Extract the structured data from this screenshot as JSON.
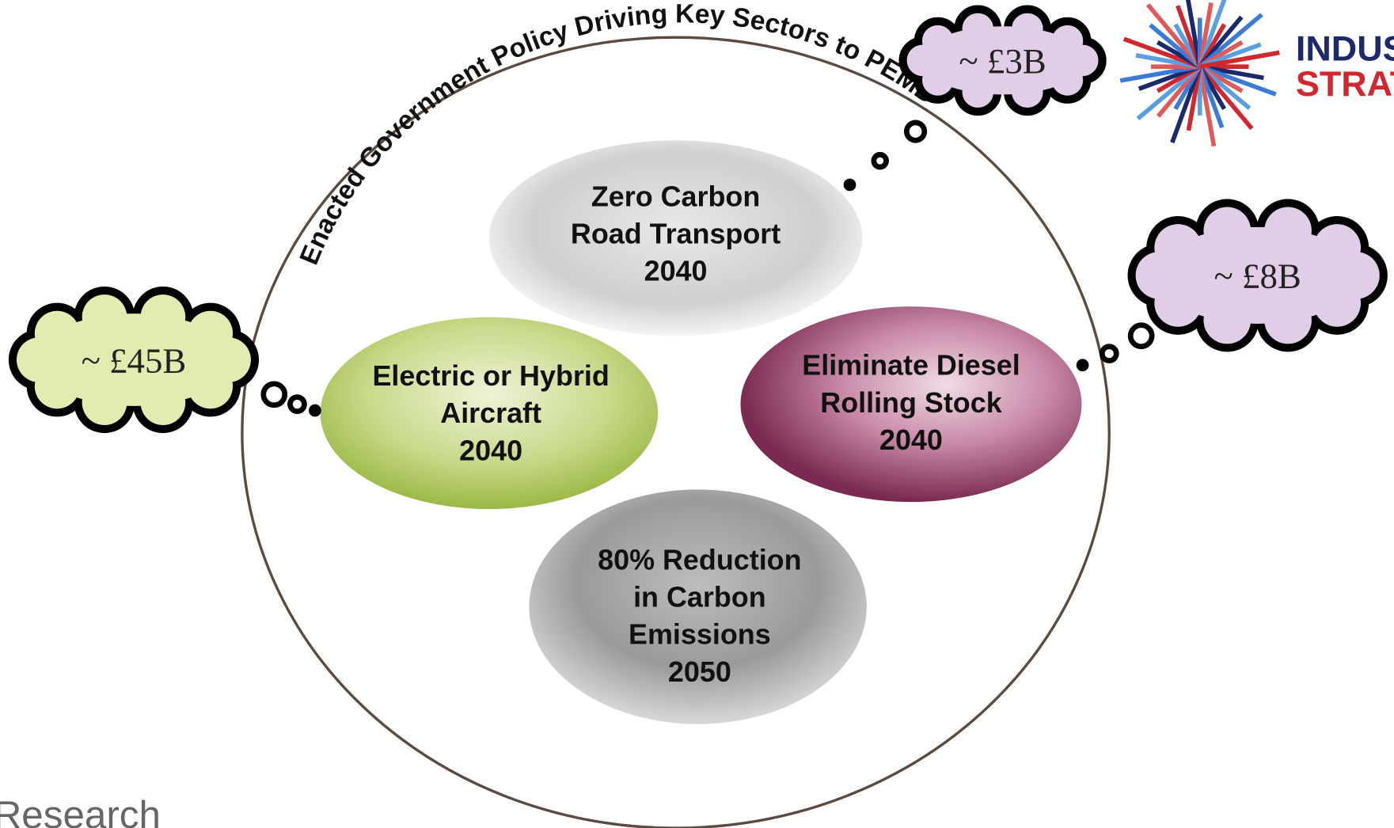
{
  "arc_title": "Enacted Government Policy Driving Key Sectors to PEMD",
  "nodes": [
    {
      "lines": [
        "Zero Carbon",
        "Road Transport",
        "2040"
      ]
    },
    {
      "lines": [
        "Electric or Hybrid",
        "Aircraft",
        "2040"
      ]
    },
    {
      "lines": [
        "Eliminate Diesel",
        "Rolling Stock",
        "2040"
      ]
    },
    {
      "lines": [
        "80% Reduction",
        "in Carbon",
        "Emissions",
        "2050"
      ]
    }
  ],
  "clouds": [
    {
      "label": "~ £3B"
    },
    {
      "label": "~ £8B"
    },
    {
      "label": "~ £45B"
    }
  ],
  "logo": {
    "line1": "INDUS",
    "line2": "STRAT"
  },
  "footer": "Research"
}
